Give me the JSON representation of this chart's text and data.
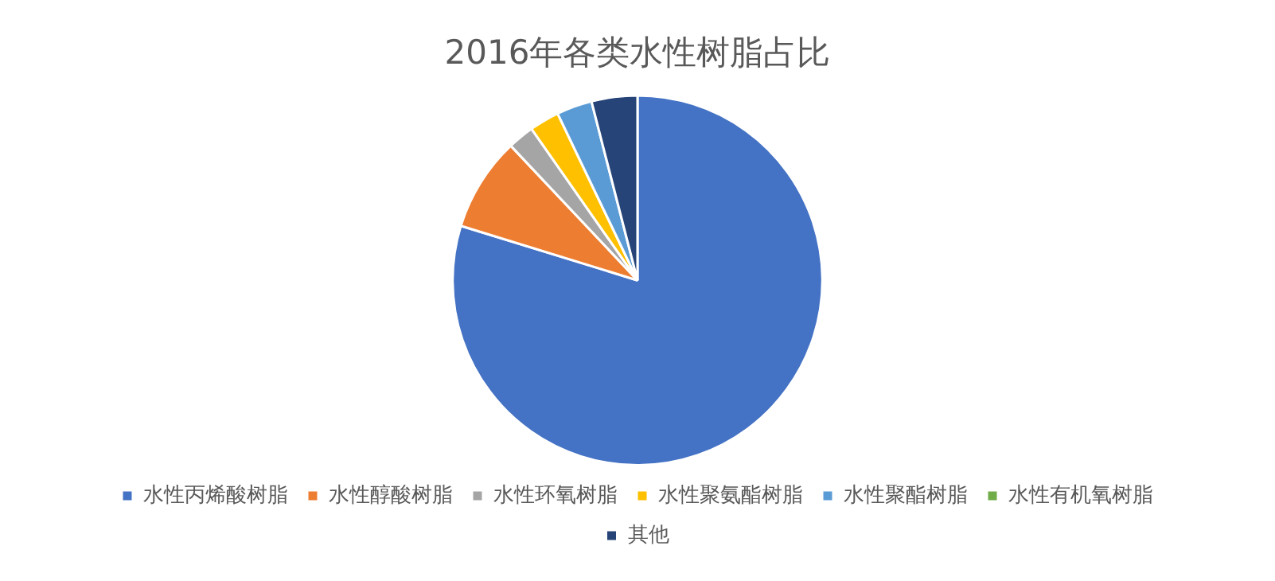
{
  "chart_data": {
    "type": "pie",
    "title": "2016年各类水性树脂占比",
    "categories": [
      "水性丙烯酸树脂",
      "水性醇酸树脂",
      "水性环氧树脂",
      "水性聚氨酯树脂",
      "水性聚酯树脂",
      "水性有机氧树脂",
      "其他"
    ],
    "values": [
      79.6,
      8.2,
      2.3,
      2.6,
      3.1,
      null,
      4.0
    ],
    "colors": [
      "#4472c4",
      "#ed7d31",
      "#a5a5a5",
      "#ffc000",
      "#5b9bd5",
      "#70ad47",
      "#264478"
    ],
    "legend": "bottom"
  }
}
